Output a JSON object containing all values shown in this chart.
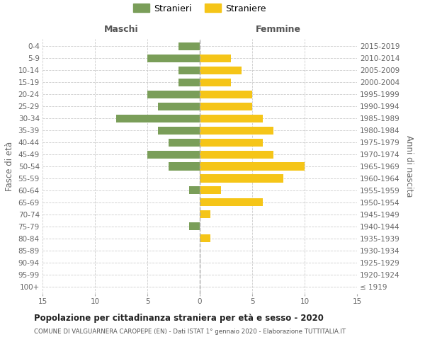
{
  "age_groups": [
    "100+",
    "95-99",
    "90-94",
    "85-89",
    "80-84",
    "75-79",
    "70-74",
    "65-69",
    "60-64",
    "55-59",
    "50-54",
    "45-49",
    "40-44",
    "35-39",
    "30-34",
    "25-29",
    "20-24",
    "15-19",
    "10-14",
    "5-9",
    "0-4"
  ],
  "birth_years": [
    "≤ 1919",
    "1920-1924",
    "1925-1929",
    "1930-1934",
    "1935-1939",
    "1940-1944",
    "1945-1949",
    "1950-1954",
    "1955-1959",
    "1960-1964",
    "1965-1969",
    "1970-1974",
    "1975-1979",
    "1980-1984",
    "1985-1989",
    "1990-1994",
    "1995-1999",
    "2000-2004",
    "2005-2009",
    "2010-2014",
    "2015-2019"
  ],
  "males": [
    0,
    0,
    0,
    0,
    0,
    1,
    0,
    0,
    1,
    0,
    3,
    5,
    3,
    4,
    8,
    4,
    5,
    2,
    2,
    5,
    2
  ],
  "females": [
    0,
    0,
    0,
    0,
    1,
    0,
    1,
    6,
    2,
    8,
    10,
    7,
    6,
    7,
    6,
    5,
    5,
    3,
    4,
    3,
    0
  ],
  "male_color": "#7a9e59",
  "female_color": "#f5c518",
  "title": "Popolazione per cittadinanza straniera per età e sesso - 2020",
  "subtitle": "COMUNE DI VALGUARNERA CAROPEPE (EN) - Dati ISTAT 1° gennaio 2020 - Elaborazione TUTTITALIA.IT",
  "ylabel_left": "Fasce di età",
  "ylabel_right": "Anni di nascita",
  "xlabel_left": "Maschi",
  "xlabel_top_right": "Femmine",
  "legend_male": "Stranieri",
  "legend_female": "Straniere",
  "xlim": 15,
  "background_color": "#ffffff",
  "grid_color": "#cccccc"
}
